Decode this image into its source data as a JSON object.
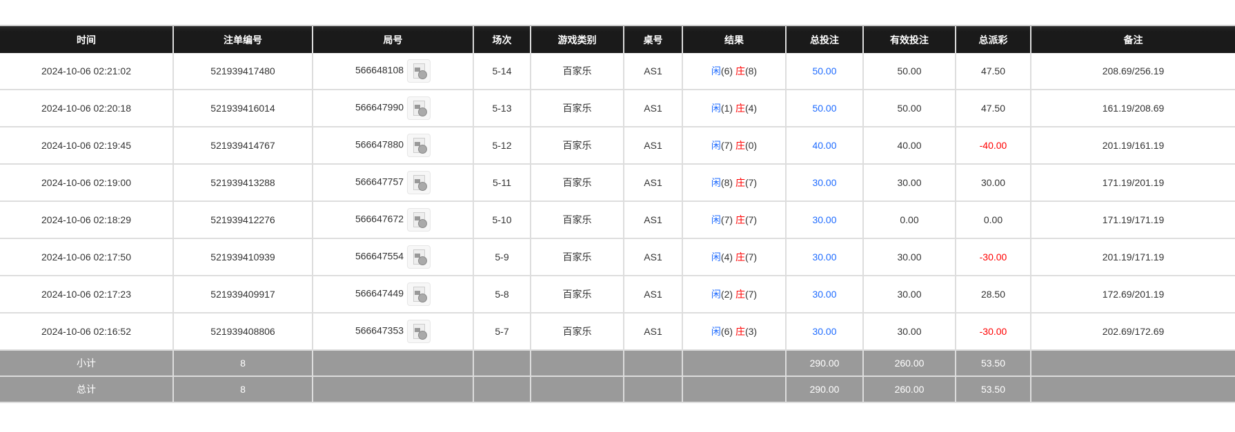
{
  "headers": [
    "时间",
    "注单编号",
    "局号",
    "场次",
    "游戏类别",
    "桌号",
    "结果",
    "总投注",
    "有效投注",
    "总派彩",
    "备注"
  ],
  "colors": {
    "header_bg": "#1a1a1a",
    "player": "#1e6bff",
    "banker": "#ff0000",
    "negative": "#ff0000",
    "bet_total": "#1e6bff",
    "summary_bg": "#9a9a9a"
  },
  "row_icon": "video-replay-icon",
  "rows": [
    {
      "time": "2024-10-06 02:21:02",
      "bet_id": "521939417480",
      "round": "566648108",
      "session": "5-14",
      "game": "百家乐",
      "table": "AS1",
      "player_label": "闲",
      "player_val": "(6)",
      "banker_label": "庄",
      "banker_val": "(8)",
      "total_bet": "50.00",
      "valid_bet": "50.00",
      "payout": "47.50",
      "payout_negative": false,
      "note": "208.69/256.19"
    },
    {
      "time": "2024-10-06 02:20:18",
      "bet_id": "521939416014",
      "round": "566647990",
      "session": "5-13",
      "game": "百家乐",
      "table": "AS1",
      "player_label": "闲",
      "player_val": "(1)",
      "banker_label": "庄",
      "banker_val": "(4)",
      "total_bet": "50.00",
      "valid_bet": "50.00",
      "payout": "47.50",
      "payout_negative": false,
      "note": "161.19/208.69"
    },
    {
      "time": "2024-10-06 02:19:45",
      "bet_id": "521939414767",
      "round": "566647880",
      "session": "5-12",
      "game": "百家乐",
      "table": "AS1",
      "player_label": "闲",
      "player_val": "(7)",
      "banker_label": "庄",
      "banker_val": "(0)",
      "total_bet": "40.00",
      "valid_bet": "40.00",
      "payout": "-40.00",
      "payout_negative": true,
      "note": "201.19/161.19"
    },
    {
      "time": "2024-10-06 02:19:00",
      "bet_id": "521939413288",
      "round": "566647757",
      "session": "5-11",
      "game": "百家乐",
      "table": "AS1",
      "player_label": "闲",
      "player_val": "(8)",
      "banker_label": "庄",
      "banker_val": "(7)",
      "total_bet": "30.00",
      "valid_bet": "30.00",
      "payout": "30.00",
      "payout_negative": false,
      "note": "171.19/201.19"
    },
    {
      "time": "2024-10-06 02:18:29",
      "bet_id": "521939412276",
      "round": "566647672",
      "session": "5-10",
      "game": "百家乐",
      "table": "AS1",
      "player_label": "闲",
      "player_val": "(7)",
      "banker_label": "庄",
      "banker_val": "(7)",
      "total_bet": "30.00",
      "valid_bet": "0.00",
      "payout": "0.00",
      "payout_negative": false,
      "note": "171.19/171.19"
    },
    {
      "time": "2024-10-06 02:17:50",
      "bet_id": "521939410939",
      "round": "566647554",
      "session": "5-9",
      "game": "百家乐",
      "table": "AS1",
      "player_label": "闲",
      "player_val": "(4)",
      "banker_label": "庄",
      "banker_val": "(7)",
      "total_bet": "30.00",
      "valid_bet": "30.00",
      "payout": "-30.00",
      "payout_negative": true,
      "note": "201.19/171.19"
    },
    {
      "time": "2024-10-06 02:17:23",
      "bet_id": "521939409917",
      "round": "566647449",
      "session": "5-8",
      "game": "百家乐",
      "table": "AS1",
      "player_label": "闲",
      "player_val": "(2)",
      "banker_label": "庄",
      "banker_val": "(7)",
      "total_bet": "30.00",
      "valid_bet": "30.00",
      "payout": "28.50",
      "payout_negative": false,
      "note": "172.69/201.19"
    },
    {
      "time": "2024-10-06 02:16:52",
      "bet_id": "521939408806",
      "round": "566647353",
      "session": "5-7",
      "game": "百家乐",
      "table": "AS1",
      "player_label": "闲",
      "player_val": "(6)",
      "banker_label": "庄",
      "banker_val": "(3)",
      "total_bet": "30.00",
      "valid_bet": "30.00",
      "payout": "-30.00",
      "payout_negative": true,
      "note": "202.69/172.69"
    }
  ],
  "subtotal": {
    "label": "小计",
    "count": "8",
    "total_bet": "290.00",
    "valid_bet": "260.00",
    "payout": "53.50"
  },
  "total": {
    "label": "总计",
    "count": "8",
    "total_bet": "290.00",
    "valid_bet": "260.00",
    "payout": "53.50"
  }
}
